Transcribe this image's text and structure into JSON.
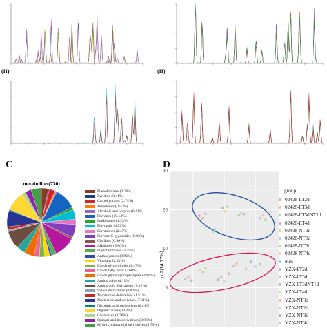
{
  "panels": {
    "c_letter": "C",
    "d_letter": "D",
    "a2_sub": "(II)",
    "b2_sub": "(II)"
  },
  "chromatograms": [
    {
      "id": "top-left",
      "color_scheme": [
        "#1a1a8a",
        "#2ca02c",
        "#d62728",
        "#9467bd",
        "#17becf",
        "#bcbd22",
        "#e377c2",
        "#8c564b"
      ]
    },
    {
      "id": "top-right",
      "color_scheme": [
        "#1a1a8a",
        "#d62728",
        "#9467bd",
        "#2ca02c"
      ]
    },
    {
      "id": "bottom-left",
      "color_scheme": [
        "#1a1a8a",
        "#2ca02c",
        "#17becf",
        "#d62728"
      ]
    },
    {
      "id": "bottom-right",
      "color_scheme": [
        "#1a1a8a",
        "#9467bd",
        "#2ca02c",
        "#d62728"
      ]
    }
  ],
  "chart_data": [
    {
      "type": "pie",
      "title": "metabolites(730)",
      "slices": [
        {
          "label": "Phenolamides (3.30%)",
          "value": 3.3,
          "color": "#8a3a2a"
        },
        {
          "label": "Pyridine (0.41%)",
          "value": 0.41,
          "color": "#1f3c88"
        },
        {
          "label": "Carbohydrates (2.74%)",
          "value": 2.74,
          "color": "#d62728"
        },
        {
          "label": "Terpenoids (0.55%)",
          "value": 0.55,
          "color": "#ff7f0e"
        },
        {
          "label": "Alcohols and polyols (0.41%)",
          "value": 0.41,
          "color": "#9467bd"
        },
        {
          "label": "Flavones (10.14%)",
          "value": 10.14,
          "color": "#1565c0"
        },
        {
          "label": "Isoflavones (1.23%)",
          "value": 1.23,
          "color": "#2ca02c"
        },
        {
          "label": "Flavonols (4.52%)",
          "value": 4.52,
          "color": "#00bcd4"
        },
        {
          "label": "Flavanones (2.47%)",
          "value": 2.47,
          "color": "#e377c2"
        },
        {
          "label": "Flavone C-glycosides (6.03%)",
          "value": 6.03,
          "color": "#7f3fbf"
        },
        {
          "label": "Cholines (0.96%)",
          "value": 0.96,
          "color": "#8c564b"
        },
        {
          "label": "Alkaloids (9.86%)",
          "value": 9.86,
          "color": "#b5179e"
        },
        {
          "label": "Phytohormones (2.19%)",
          "value": 2.19,
          "color": "#4caf50"
        },
        {
          "label": "Anthocyanins (0.96%)",
          "value": 0.96,
          "color": "#3949ab"
        },
        {
          "label": "Vitamins (2.33%)",
          "value": 2.33,
          "color": "#ffd600"
        },
        {
          "label": "Lipids glycerolipids (2.47%)",
          "value": 2.47,
          "color": "#7cb342"
        },
        {
          "label": "Lipids fatty acids (2.60%)",
          "value": 2.6,
          "color": "#f06292"
        },
        {
          "label": "Lipids glycerophospholipids (4.66%)",
          "value": 4.66,
          "color": "#ef6c00"
        },
        {
          "label": "Amino acids (4.11%)",
          "value": 4.11,
          "color": "#26a69a"
        },
        {
          "label": "Amino acid derivatives (8.22%)",
          "value": 8.22,
          "color": "#6d4c41"
        },
        {
          "label": "Indole derivatives (0.82%)",
          "value": 0.82,
          "color": "#90a4ae"
        },
        {
          "label": "Tryptamine derivatives (1.51%)",
          "value": 1.51,
          "color": "#c62828"
        },
        {
          "label": "Nucleotide and derivates (7.81%)",
          "value": 7.81,
          "color": "#283593"
        },
        {
          "label": "Nicotinic acid derivatives (0.41%)",
          "value": 0.41,
          "color": "#00897b"
        },
        {
          "label": "Organic acids (9.18%)",
          "value": 9.18,
          "color": "#fdd835"
        },
        {
          "label": "Coumarins (1.78%)",
          "value": 1.78,
          "color": "#aed581"
        },
        {
          "label": "Quinate and its derivatives (2.88%)",
          "value": 2.88,
          "color": "#8e24aa"
        },
        {
          "label": "Hydroxycinnamoyl derivatives (4.79%)",
          "value": 4.79,
          "color": "#43a047"
        }
      ]
    },
    {
      "type": "scatter",
      "ylabel": "pc2(14.77%)",
      "ylim": [
        -10,
        30
      ],
      "yticks": [
        30,
        20,
        10,
        0
      ],
      "legend_title": "group",
      "legend_placement": "right",
      "groups": [
        {
          "name": "02428-LT2d",
          "color": "#e8a0b4"
        },
        {
          "name": "02428-LT3d",
          "color": "#f0b88c"
        },
        {
          "name": "02428-LT3dNT1d",
          "color": "#b0c8e8"
        },
        {
          "name": "02428-LT4d",
          "color": "#d4a0d8"
        },
        {
          "name": "02428-NT2d",
          "color": "#e8d088"
        },
        {
          "name": "02428-NT0d",
          "color": "#c8c8c8"
        },
        {
          "name": "02428-NT3d",
          "color": "#a8d8a0"
        },
        {
          "name": "02428-NT4d",
          "color": "#f0c0c0"
        },
        {
          "name": "mix",
          "color": "#90d0d8"
        },
        {
          "name": "YZX-LT2d",
          "color": "#bcbcbc"
        },
        {
          "name": "YZX-LT3d",
          "color": "#d8b8e0"
        },
        {
          "name": "YZX-LT3dNT1d",
          "color": "#b8b8b8"
        },
        {
          "name": "YZX-LT4d",
          "color": "#c8d8a8"
        },
        {
          "name": "YZX-NT0d",
          "color": "#e8c0a0"
        },
        {
          "name": "YZX-NT2d",
          "color": "#a8e0a8"
        },
        {
          "name": "YZX-NT3d",
          "color": "#b0b0b0"
        },
        {
          "name": "YZX-NT4d",
          "color": "#c0c0e8"
        }
      ],
      "points": [
        {
          "x": 0.8,
          "y": 18.5,
          "g": 0
        },
        {
          "x": 1.2,
          "y": 17.8,
          "g": 1
        },
        {
          "x": 1.6,
          "y": 19.0,
          "g": 2
        },
        {
          "x": 3.8,
          "y": 20.4,
          "g": 3
        },
        {
          "x": 4.1,
          "y": 19.6,
          "g": 4
        },
        {
          "x": 4.4,
          "y": 20.8,
          "g": 5
        },
        {
          "x": 5.9,
          "y": 18.6,
          "g": 6
        },
        {
          "x": 6.2,
          "y": 19.3,
          "g": 7
        },
        {
          "x": 6.5,
          "y": 18.9,
          "g": 8
        },
        {
          "x": 8.6,
          "y": 17.8,
          "g": 2
        },
        {
          "x": 9.0,
          "y": 18.6,
          "g": 4
        },
        {
          "x": 9.3,
          "y": 17.4,
          "g": 6
        },
        {
          "x": 2.6,
          "y": 14.4,
          "g": 6
        },
        {
          "x": 2.8,
          "y": 14.9,
          "g": 8
        },
        {
          "x": -1.0,
          "y": 2.2,
          "g": 9
        },
        {
          "x": -0.6,
          "y": 2.8,
          "g": 10
        },
        {
          "x": -0.2,
          "y": 1.8,
          "g": 11
        },
        {
          "x": 0.9,
          "y": 4.6,
          "g": 12
        },
        {
          "x": 1.3,
          "y": 4.0,
          "g": 13
        },
        {
          "x": 1.6,
          "y": 5.0,
          "g": 14
        },
        {
          "x": 3.2,
          "y": 2.0,
          "g": 15
        },
        {
          "x": 3.6,
          "y": 2.8,
          "g": 16
        },
        {
          "x": 4.0,
          "y": 1.6,
          "g": 12
        },
        {
          "x": 5.2,
          "y": 5.6,
          "g": 10
        },
        {
          "x": 5.6,
          "y": 6.2,
          "g": 13
        },
        {
          "x": 6.8,
          "y": 4.8,
          "g": 14
        },
        {
          "x": 7.4,
          "y": 6.6,
          "g": 15
        },
        {
          "x": 8.0,
          "y": 5.4,
          "g": 16
        },
        {
          "x": 8.6,
          "y": 6.0,
          "g": 9
        },
        {
          "x": 4.6,
          "y": 3.6,
          "g": 11
        }
      ]
    }
  ]
}
